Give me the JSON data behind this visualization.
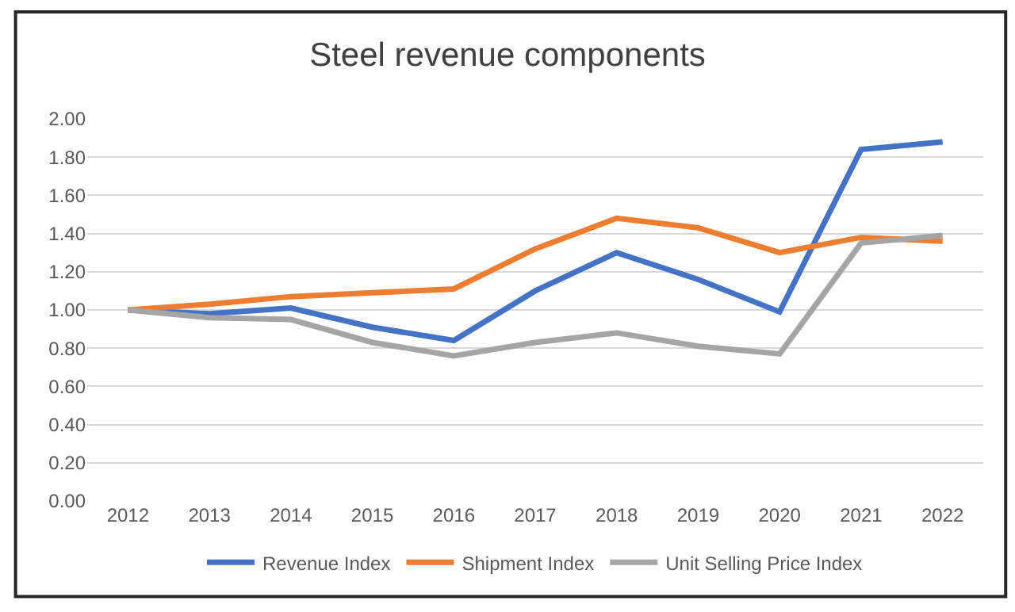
{
  "chart_data": {
    "type": "line",
    "title": "Steel revenue components",
    "categories": [
      "2012",
      "2013",
      "2014",
      "2015",
      "2016",
      "2017",
      "2018",
      "2019",
      "2020",
      "2021",
      "2022"
    ],
    "series": [
      {
        "name": "Revenue Index",
        "color": "#4472c4",
        "values": [
          1.0,
          0.98,
          1.01,
          0.91,
          0.84,
          1.1,
          1.3,
          1.16,
          0.99,
          1.84,
          1.88
        ]
      },
      {
        "name": "Shipment Index",
        "color": "#ed7d31",
        "values": [
          1.0,
          1.03,
          1.07,
          1.09,
          1.11,
          1.32,
          1.48,
          1.43,
          1.3,
          1.38,
          1.36
        ]
      },
      {
        "name": "Unit Selling Price Index",
        "color": "#a5a5a5",
        "values": [
          1.0,
          0.96,
          0.95,
          0.83,
          0.76,
          0.83,
          0.88,
          0.81,
          0.77,
          1.35,
          1.39
        ]
      }
    ],
    "ylim": [
      0,
      2.0
    ],
    "yticks": [
      {
        "value": 0,
        "label": "0.00"
      },
      {
        "value": 0.2,
        "label": "0.20"
      },
      {
        "value": 0.4,
        "label": "0.40"
      },
      {
        "value": 0.6,
        "label": "0.60"
      },
      {
        "value": 0.8,
        "label": "0.80"
      },
      {
        "value": 1.0,
        "label": "1.00"
      },
      {
        "value": 1.2,
        "label": "1.20"
      },
      {
        "value": 1.4,
        "label": "1.40"
      },
      {
        "value": 1.6,
        "label": "1.60"
      },
      {
        "value": 1.8,
        "label": "1.80"
      },
      {
        "value": 2.0,
        "label": "2.00"
      }
    ],
    "grid": "y",
    "legend": "bottom",
    "marker": "none",
    "line_style": "solid"
  }
}
